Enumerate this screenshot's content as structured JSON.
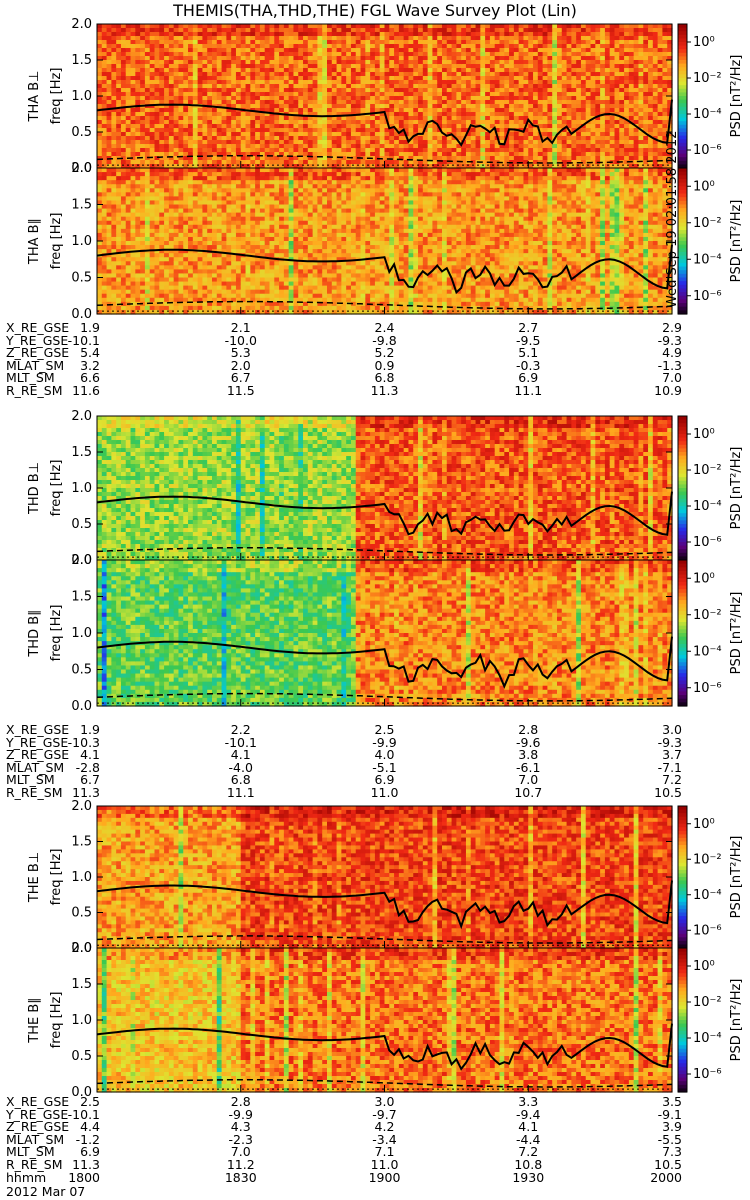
{
  "title": "THEMIS(THA,THD,THE) FGL Wave Survey Plot (Lin)",
  "chart_data": {
    "type": "heatmap",
    "date": "2012 Mar 07",
    "stamp": "Wed Sep 19 02:01:58 2012",
    "y_ticks": [
      "0.0",
      "0.5",
      "1.0",
      "1.5",
      "2.0"
    ],
    "ylim": [
      0,
      2.0
    ],
    "xlim_hhmm": [
      "1800",
      "2000"
    ],
    "colorbar": {
      "label": "PSD [nT²/Hz]",
      "ticks": [
        "10⁰",
        "10⁻²",
        "10⁻⁴",
        "10⁻⁶"
      ],
      "range_log10": [
        -7,
        1
      ]
    },
    "panels": [
      {
        "probe": "THA",
        "component": "B⊥",
        "ylabel": "THA B⊥",
        "yunit": "freq [Hz]"
      },
      {
        "probe": "THA",
        "component": "B∥",
        "ylabel": "THA B∥",
        "yunit": "freq [Hz]"
      },
      {
        "probe": "THD",
        "component": "B⊥",
        "ylabel": "THD B⊥",
        "yunit": "freq [Hz]"
      },
      {
        "probe": "THD",
        "component": "B∥",
        "ylabel": "THD B∥",
        "yunit": "freq [Hz]"
      },
      {
        "probe": "THE",
        "component": "B⊥",
        "ylabel": "THE B⊥",
        "yunit": "freq [Hz]"
      },
      {
        "probe": "THE",
        "component": "B∥",
        "ylabel": "THE B∥",
        "yunit": "freq [Hz]"
      }
    ],
    "ephemeris": [
      {
        "probe": "THA",
        "rows": [
          {
            "label": "X_RE_GSE",
            "values": [
              "1.9",
              "2.1",
              "2.4",
              "2.7",
              "2.9"
            ]
          },
          {
            "label": "Y_RE_GSE",
            "values": [
              "-10.1",
              "-10.0",
              "-9.8",
              "-9.5",
              "-9.3"
            ]
          },
          {
            "label": "Z_RE_GSE",
            "values": [
              "5.4",
              "5.3",
              "5.2",
              "5.1",
              "4.9"
            ]
          },
          {
            "label": "MLAT_SM",
            "values": [
              "3.2",
              "2.0",
              "0.9",
              "-0.3",
              "-1.3"
            ]
          },
          {
            "label": "MLT_SM",
            "values": [
              "6.6",
              "6.7",
              "6.8",
              "6.9",
              "7.0"
            ]
          },
          {
            "label": "R_RE_SM",
            "values": [
              "11.6",
              "11.5",
              "11.3",
              "11.1",
              "10.9"
            ]
          }
        ]
      },
      {
        "probe": "THD",
        "rows": [
          {
            "label": "X_RE_GSE",
            "values": [
              "1.9",
              "2.2",
              "2.5",
              "2.8",
              "3.0"
            ]
          },
          {
            "label": "Y_RE_GSE",
            "values": [
              "-10.3",
              "-10.1",
              "-9.9",
              "-9.6",
              "-9.3"
            ]
          },
          {
            "label": "Z_RE_GSE",
            "values": [
              "4.1",
              "4.1",
              "4.0",
              "3.8",
              "3.7"
            ]
          },
          {
            "label": "MLAT_SM",
            "values": [
              "-2.8",
              "-4.0",
              "-5.1",
              "-6.1",
              "-7.1"
            ]
          },
          {
            "label": "MLT_SM",
            "values": [
              "6.7",
              "6.8",
              "6.9",
              "7.0",
              "7.2"
            ]
          },
          {
            "label": "R_RE_SM",
            "values": [
              "11.3",
              "11.1",
              "11.0",
              "10.7",
              "10.5"
            ]
          }
        ]
      },
      {
        "probe": "THE",
        "rows": [
          {
            "label": "X_RE_GSE",
            "values": [
              "2.5",
              "2.8",
              "3.0",
              "3.3",
              "3.5"
            ]
          },
          {
            "label": "Y_RE_GSE",
            "values": [
              "-10.1",
              "-9.9",
              "-9.7",
              "-9.4",
              "-9.1"
            ]
          },
          {
            "label": "Z_RE_GSE",
            "values": [
              "4.4",
              "4.3",
              "4.2",
              "4.1",
              "3.9"
            ]
          },
          {
            "label": "MLAT_SM",
            "values": [
              "-1.2",
              "-2.3",
              "-3.4",
              "-4.4",
              "-5.5"
            ]
          },
          {
            "label": "MLT_SM",
            "values": [
              "6.9",
              "7.0",
              "7.1",
              "7.2",
              "7.3"
            ]
          },
          {
            "label": "R_RE_SM",
            "values": [
              "11.3",
              "11.2",
              "11.0",
              "10.8",
              "10.5"
            ]
          },
          {
            "label": "hhmm",
            "values": [
              "1800",
              "1830",
              "1900",
              "1930",
              "2000"
            ]
          }
        ]
      }
    ]
  }
}
